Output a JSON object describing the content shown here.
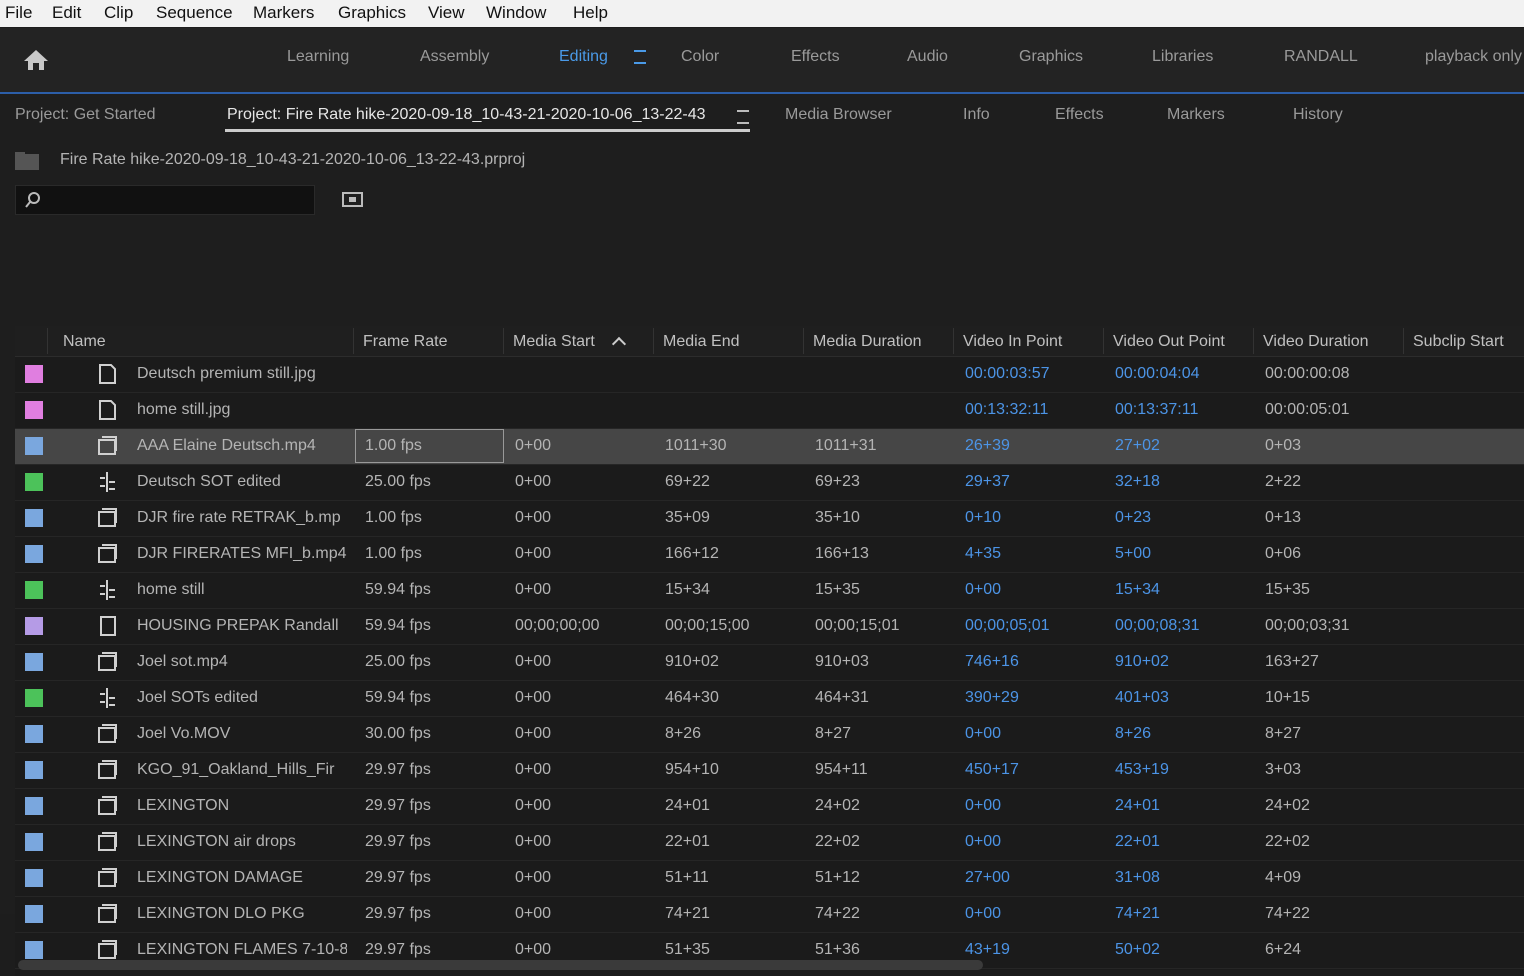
{
  "menu": [
    "File",
    "Edit",
    "Clip",
    "Sequence",
    "Markers",
    "Graphics",
    "View",
    "Window",
    "Help"
  ],
  "workspaces": [
    "Learning",
    "Assembly",
    "Editing",
    "Color",
    "Effects",
    "Audio",
    "Graphics",
    "Libraries",
    "RANDALL",
    "playback only"
  ],
  "active_workspace": 2,
  "panel_tabs": [
    "Project: Get Started",
    "Project: Fire Rate hike-2020-09-18_10-43-21-2020-10-06_13-22-43",
    "Media Browser",
    "Info",
    "Effects",
    "Markers",
    "History"
  ],
  "active_panel_tab": 1,
  "project_file": "Fire Rate hike-2020-09-18_10-43-21-2020-10-06_13-22-43.prproj",
  "table": {
    "columns": [
      "Name",
      "Frame Rate",
      "Media Start",
      "Media End",
      "Media Duration",
      "Video In Point",
      "Video Out Point",
      "Video Duration",
      "Subclip Start"
    ],
    "sorted_column": 2,
    "selected_row": 2,
    "rows": [
      {
        "color": "#e07ee0",
        "cells": [
          "Deutsch premium still.jpg",
          null,
          null,
          null,
          null,
          "00:00:03:57",
          "00:00:04:04",
          "00:00:00:08",
          null
        ]
      },
      {
        "color": "#e07ee0",
        "cells": [
          "home still.jpg",
          null,
          null,
          null,
          null,
          "00:13:32:11",
          "00:13:37:11",
          "00:00:05:01",
          null
        ]
      },
      {
        "color": "#7aa7de",
        "cells": [
          "AAA Elaine Deutsch.mp4",
          "1.00 fps",
          "0+00",
          "1011+30",
          "1011+31",
          "26+39",
          "27+02",
          "0+03",
          null
        ]
      },
      {
        "color": "#4cc25a",
        "cells": [
          "Deutsch SOT edited",
          "25.00 fps",
          "0+00",
          "69+22",
          "69+23",
          "29+37",
          "32+18",
          "2+22",
          null
        ]
      },
      {
        "color": "#7aa7de",
        "cells": [
          "DJR fire rate RETRAK_b.mp",
          "1.00 fps",
          "0+00",
          "35+09",
          "35+10",
          "0+10",
          "0+23",
          "0+13",
          null
        ]
      },
      {
        "color": "#7aa7de",
        "cells": [
          "DJR FIRERATES MFI_b.mp4",
          "1.00 fps",
          "0+00",
          "166+12",
          "166+13",
          "4+35",
          "5+00",
          "0+06",
          null
        ]
      },
      {
        "color": "#4cc25a",
        "cells": [
          "home still",
          "59.94 fps",
          "0+00",
          "15+34",
          "15+35",
          "0+00",
          "15+34",
          "15+35",
          null
        ]
      },
      {
        "color": "#b59be6",
        "cells": [
          "HOUSING PREPAK Randall",
          "59.94 fps",
          "00;00;00;00",
          "00;00;15;00",
          "00;00;15;01",
          "00;00;05;01",
          "00;00;08;31",
          "00;00;03;31",
          null
        ]
      },
      {
        "color": "#7aa7de",
        "cells": [
          "Joel sot.mp4",
          "25.00 fps",
          "0+00",
          "910+02",
          "910+03",
          "746+16",
          "910+02",
          "163+27",
          null
        ]
      },
      {
        "color": "#4cc25a",
        "cells": [
          "Joel SOTs edited",
          "59.94 fps",
          "0+00",
          "464+30",
          "464+31",
          "390+29",
          "401+03",
          "10+15",
          null
        ]
      },
      {
        "color": "#7aa7de",
        "cells": [
          "Joel Vo.MOV",
          "30.00 fps",
          "0+00",
          "8+26",
          "8+27",
          "0+00",
          "8+26",
          "8+27",
          null
        ]
      },
      {
        "color": "#7aa7de",
        "cells": [
          "KGO_91_Oakland_Hills_Fir",
          "29.97 fps",
          "0+00",
          "954+10",
          "954+11",
          "450+17",
          "453+19",
          "3+03",
          null
        ]
      },
      {
        "color": "#7aa7de",
        "cells": [
          "LEXINGTON",
          "29.97 fps",
          "0+00",
          "24+01",
          "24+02",
          "0+00",
          "24+01",
          "24+02",
          null
        ]
      },
      {
        "color": "#7aa7de",
        "cells": [
          "LEXINGTON air drops",
          "29.97 fps",
          "0+00",
          "22+01",
          "22+02",
          "0+00",
          "22+01",
          "22+02",
          null
        ]
      },
      {
        "color": "#7aa7de",
        "cells": [
          "LEXINGTON DAMAGE",
          "29.97 fps",
          "0+00",
          "51+11",
          "51+12",
          "27+00",
          "31+08",
          "4+09",
          null
        ]
      },
      {
        "color": "#7aa7de",
        "cells": [
          "LEXINGTON DLO PKG",
          "29.97 fps",
          "0+00",
          "74+21",
          "74+22",
          "0+00",
          "74+21",
          "74+22",
          null
        ]
      },
      {
        "color": "#7aa7de",
        "cells": [
          "LEXINGTON FLAMES 7-10-8",
          "29.97 fps",
          "0+00",
          "51+35",
          "51+36",
          "43+19",
          "50+02",
          "6+24",
          null
        ]
      }
    ]
  }
}
